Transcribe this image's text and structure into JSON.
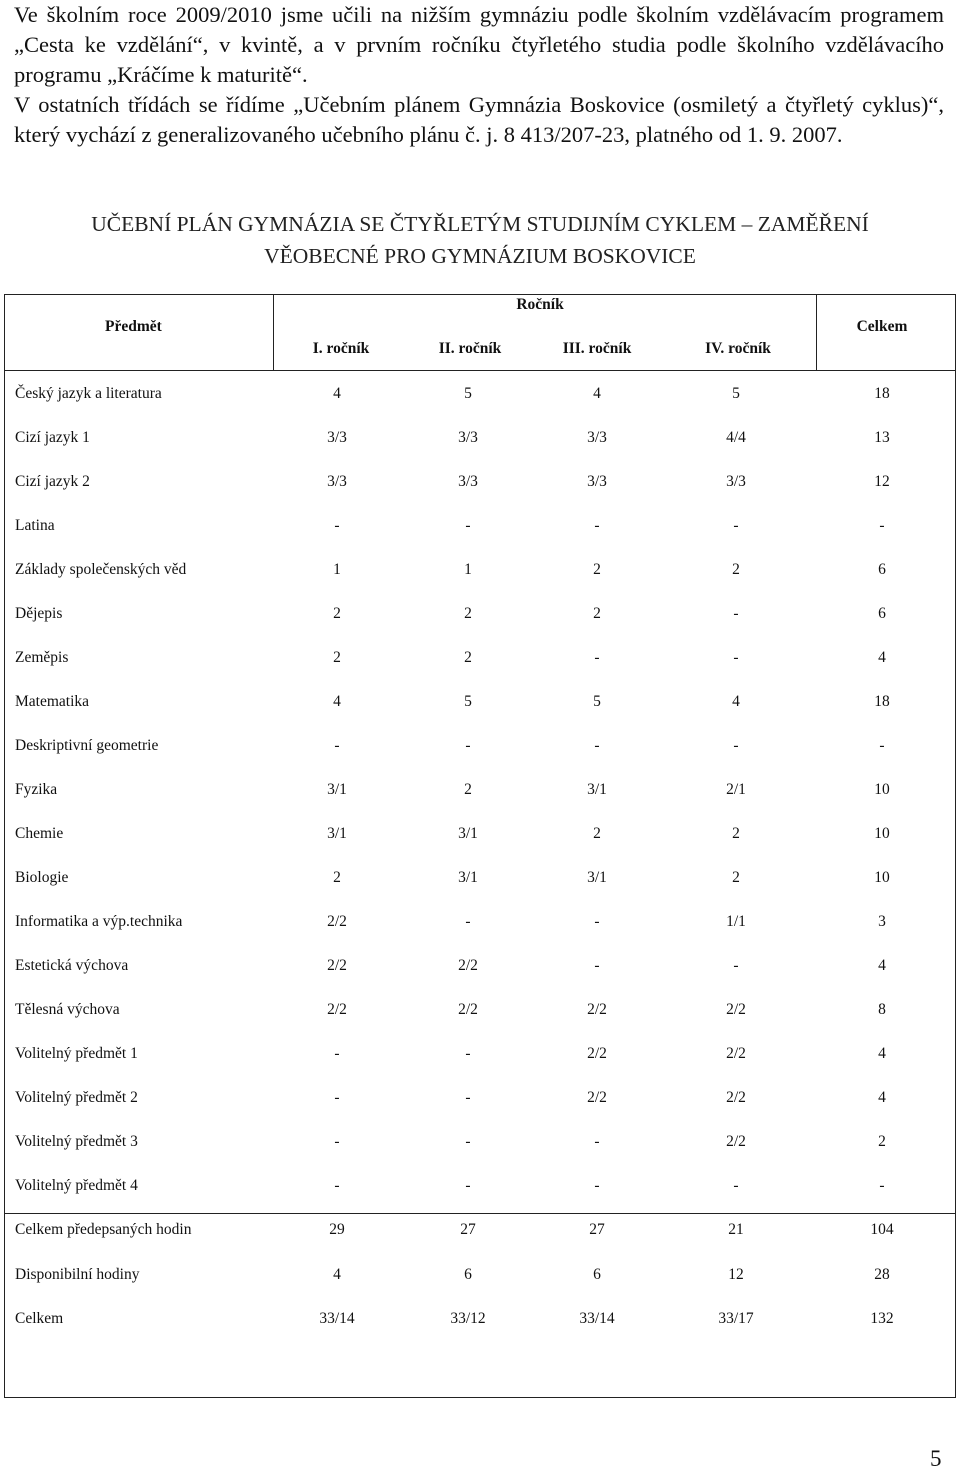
{
  "intro": {
    "paragraph1": "Ve školním roce 2009/2010 jsme učili na nižším gymnáziu podle školním vzdělávacím programem „Cesta ke vzdělání“, v kvintě, a v prvním ročníku čtyřletého studia podle školního vzdělávacího programu „Kráčíme k maturitě“.",
    "paragraph2": "V ostatních třídách se řídíme „Učebním plánem Gymnázia Boskovice (osmiletý a čtyřletý cyklus)“, který vychází z generalizovaného učebního plánu č. j. 8 413/207-23, platného od 1. 9. 2007."
  },
  "heading": {
    "line1": "UČEBNÍ PLÁN GYMNÁZIA SE ČTYŘLETÝM STUDIJNÍM CYKLEM – ZAMĚŘENÍ",
    "line2": "VĚOBECNÉ  PRO GYMNÁZIUM BOSKOVICE"
  },
  "table": {
    "header": {
      "subject": "Předmět",
      "group": "Ročník",
      "total": "Celkem",
      "years": [
        "I. ročník",
        "II. ročník",
        "III. ročník",
        "IV. ročník"
      ]
    },
    "rows": [
      {
        "subject": "Český jazyk a literatura",
        "values": [
          "4",
          "5",
          "4",
          "5"
        ],
        "total": "18"
      },
      {
        "subject": "Cizí jazyk 1",
        "values": [
          "3/3",
          "3/3",
          "3/3",
          "4/4"
        ],
        "total": "13"
      },
      {
        "subject": "Cizí jazyk 2",
        "values": [
          "3/3",
          "3/3",
          "3/3",
          "3/3"
        ],
        "total": "12"
      },
      {
        "subject": "Latina",
        "values": [
          "-",
          "-",
          "-",
          "-"
        ],
        "total": "-"
      },
      {
        "subject": "Základy společenských věd",
        "values": [
          "1",
          "1",
          "2",
          "2"
        ],
        "total": "6"
      },
      {
        "subject": "Dějepis",
        "values": [
          "2",
          "2",
          "2",
          "-"
        ],
        "total": "6"
      },
      {
        "subject": "Zeměpis",
        "values": [
          "2",
          "2",
          "-",
          "-"
        ],
        "total": "4"
      },
      {
        "subject": "Matematika",
        "values": [
          "4",
          "5",
          "5",
          "4"
        ],
        "total": "18"
      },
      {
        "subject": "Deskriptivní geometrie",
        "values": [
          "-",
          "-",
          "-",
          "-"
        ],
        "total": "-"
      },
      {
        "subject": "Fyzika",
        "values": [
          "3/1",
          "2",
          "3/1",
          "2/1"
        ],
        "total": "10"
      },
      {
        "subject": "Chemie",
        "values": [
          "3/1",
          "3/1",
          "2",
          "2"
        ],
        "total": "10"
      },
      {
        "subject": "Biologie",
        "values": [
          "2",
          "3/1",
          "3/1",
          "2"
        ],
        "total": "10"
      },
      {
        "subject": "Informatika a výp.technika",
        "values": [
          "2/2",
          "-",
          "-",
          "1/1"
        ],
        "total": "3"
      },
      {
        "subject": "Estetická výchova",
        "values": [
          "2/2",
          "2/2",
          "-",
          "-"
        ],
        "total": "4"
      },
      {
        "subject": "Tělesná výchova",
        "values": [
          "2/2",
          "2/2",
          "2/2",
          "2/2"
        ],
        "total": "8"
      },
      {
        "subject": "Volitelný předmět 1",
        "values": [
          "-",
          "-",
          "2/2",
          "2/2"
        ],
        "total": "4"
      },
      {
        "subject": "Volitelný předmět 2",
        "values": [
          "-",
          "-",
          "2/2",
          "2/2"
        ],
        "total": "4"
      },
      {
        "subject": "Volitelný předmět 3",
        "values": [
          "-",
          "-",
          "-",
          "2/2"
        ],
        "total": "2"
      },
      {
        "subject": "Volitelný předmět 4",
        "values": [
          "-",
          "-",
          "-",
          "-"
        ],
        "total": "-"
      }
    ],
    "summary": [
      {
        "subject": "Celkem předepsaných hodin",
        "values": [
          "29",
          "27",
          "27",
          "21"
        ],
        "total": "104"
      },
      {
        "subject": "Disponibilní hodiny",
        "values": [
          "4",
          "6",
          "6",
          "12"
        ],
        "total": "28"
      },
      {
        "subject": "Celkem",
        "values": [
          "33/14",
          "33/12",
          "33/14",
          "33/17"
        ],
        "total": "132"
      }
    ]
  },
  "page_number": "5"
}
